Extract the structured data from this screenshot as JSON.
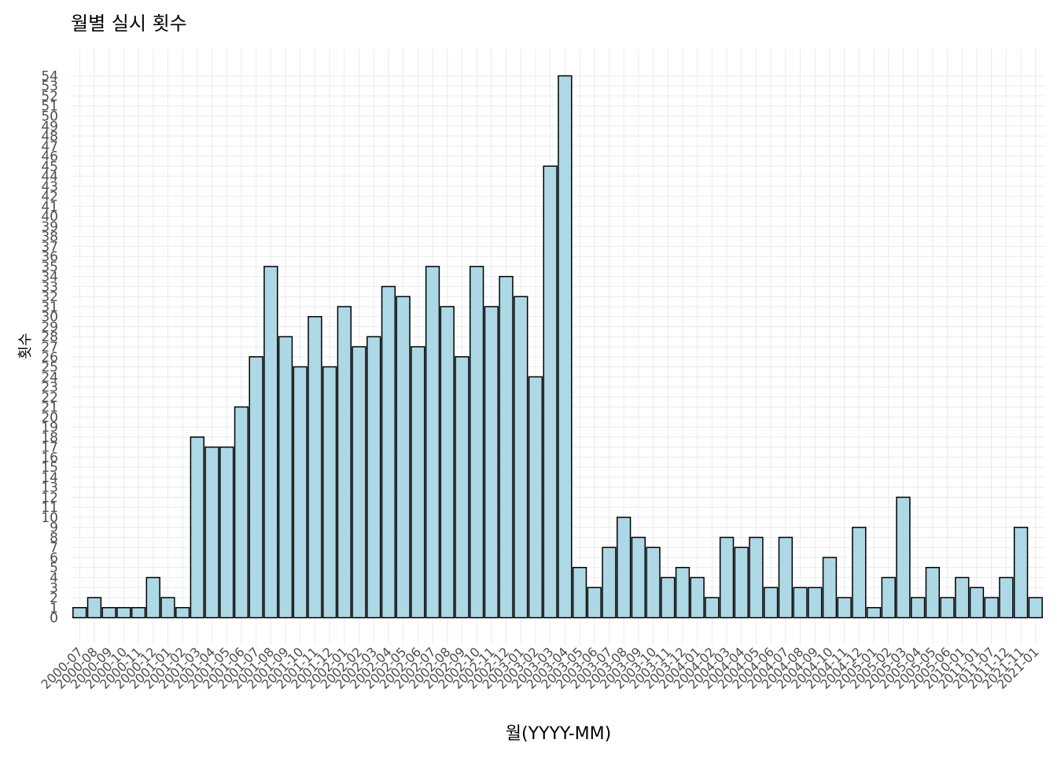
{
  "chart_data": {
    "type": "bar",
    "title": "월별 실시 횟수",
    "x_label": "월(YYYY-MM)",
    "y_label": "횟수",
    "categories": [
      "2000-07",
      "2000-08",
      "2000-09",
      "2000-10",
      "2000-11",
      "2000-12",
      "2001-01",
      "2001-02",
      "2001-03",
      "2001-04",
      "2001-05",
      "2001-06",
      "2001-07",
      "2001-08",
      "2001-09",
      "2001-10",
      "2001-11",
      "2001-12",
      "2002-01",
      "2002-02",
      "2002-03",
      "2002-04",
      "2002-05",
      "2002-06",
      "2002-07",
      "2002-08",
      "2002-09",
      "2002-10",
      "2002-11",
      "2002-12",
      "2003-01",
      "2003-02",
      "2003-03",
      "2003-04",
      "2003-05",
      "2003-06",
      "2003-07",
      "2003-08",
      "2003-09",
      "2003-10",
      "2003-11",
      "2003-12",
      "2004-01",
      "2004-02",
      "2004-03",
      "2004-04",
      "2004-05",
      "2004-06",
      "2004-07",
      "2004-08",
      "2004-09",
      "2004-10",
      "2004-11",
      "2004-12",
      "2005-01",
      "2005-02",
      "2005-03",
      "2005-04",
      "2005-05",
      "2005-06",
      "2010-01",
      "2011-01",
      "2011-07",
      "2011-12",
      "2021-11",
      "2021-01"
    ],
    "values": [
      1,
      2,
      1,
      1,
      1,
      4,
      2,
      1,
      18,
      17,
      17,
      21,
      26,
      35,
      28,
      25,
      30,
      25,
      31,
      27,
      28,
      33,
      32,
      27,
      35,
      31,
      26,
      35,
      31,
      34,
      32,
      24,
      45,
      54,
      5,
      3,
      7,
      10,
      8,
      7,
      4,
      5,
      4,
      2,
      8,
      7,
      8,
      3,
      8,
      3,
      3,
      6,
      2,
      9,
      1,
      4,
      12,
      2,
      5,
      2,
      4,
      3,
      2,
      4,
      9,
      2
    ],
    "color": "#add8e6",
    "edge_color": "#000000",
    "ylim": [
      -2.7,
      56.7
    ],
    "yticks": [
      0,
      1,
      2,
      3,
      4,
      5,
      6,
      7,
      8,
      9,
      10,
      11,
      12,
      13,
      14,
      15,
      16,
      17,
      18,
      19,
      20,
      21,
      22,
      23,
      24,
      25,
      26,
      27,
      28,
      29,
      30,
      31,
      32,
      33,
      34,
      35,
      36,
      37,
      38,
      39,
      40,
      41,
      42,
      43,
      44,
      45,
      46,
      47,
      48,
      49,
      50,
      51,
      52,
      53,
      54
    ],
    "grid": true
  }
}
